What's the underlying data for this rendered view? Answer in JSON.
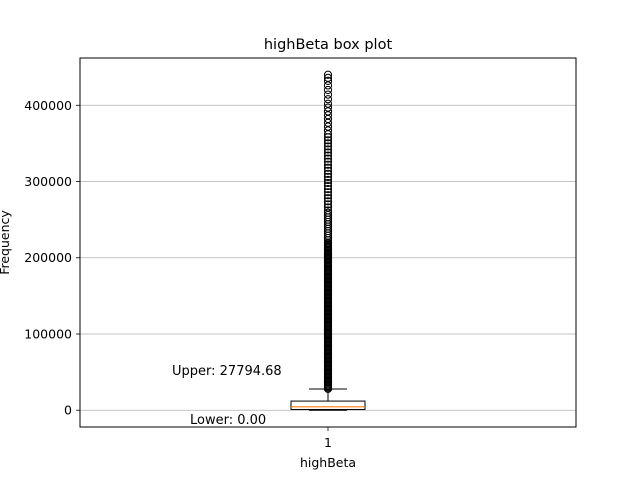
{
  "chart_data": {
    "type": "box",
    "title": "highBeta box plot",
    "xlabel": "highBeta",
    "ylabel": "Frequency",
    "categories": [
      "1"
    ],
    "ylim": [
      -22000,
      462000
    ],
    "yticks": [
      0,
      100000,
      200000,
      300000,
      400000
    ],
    "ytick_labels": [
      "0",
      "100000",
      "200000",
      "300000",
      "400000"
    ],
    "grid": "y-major",
    "box": {
      "lower_whisker": 0,
      "q1": 1000,
      "median": 4500,
      "q3": 12000,
      "upper_whisker": 27794.68
    },
    "outliers": {
      "dense_from": 28000,
      "dense_to": 220000,
      "dense_step": 1500,
      "sparse": [
        223000,
        226000,
        229000,
        232000,
        235000,
        238000,
        241000,
        244000,
        247000,
        250000,
        253000,
        256000,
        259000,
        262000,
        266000,
        270000,
        274000,
        278000,
        282000,
        286000,
        290000,
        294000,
        298000,
        302000,
        306000,
        310000,
        314000,
        318000,
        322000,
        326000,
        330000,
        334000,
        338000,
        342000,
        346000,
        350000,
        354000,
        358000,
        362000,
        367000,
        372000,
        377000,
        382000,
        387000,
        392000,
        397000,
        402000,
        408000,
        414000,
        420000,
        426000,
        432000,
        436000,
        440000
      ]
    },
    "annotations": [
      {
        "text": "Upper: 27794.68"
      },
      {
        "text": "Lower: 0.00"
      }
    ],
    "colors": {
      "median": "#ff7f0e",
      "grid": "#b0b0b0",
      "box": "#000000"
    }
  }
}
